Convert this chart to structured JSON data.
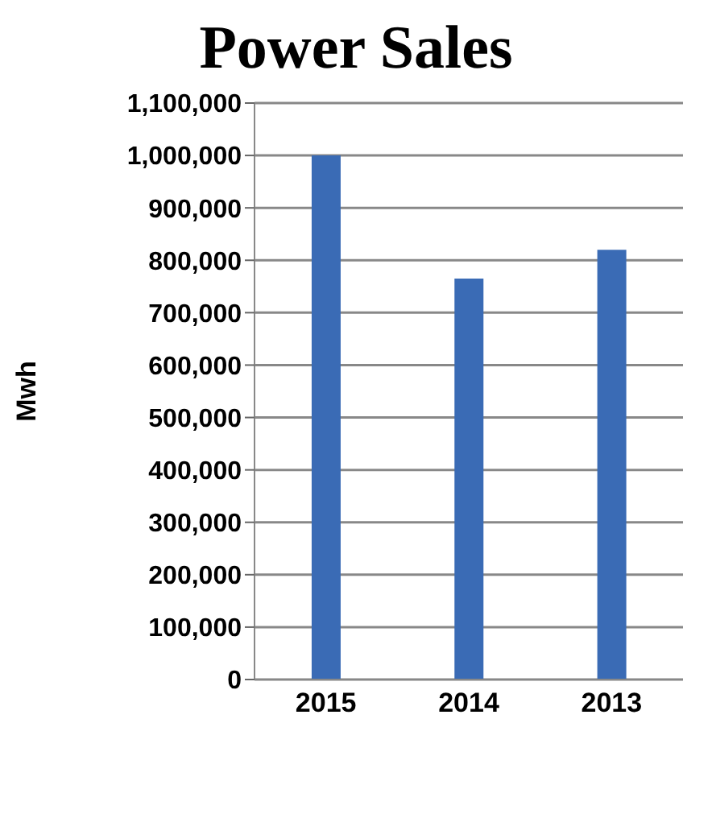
{
  "chart_data": {
    "type": "bar",
    "title": "Power Sales",
    "ylabel": "Mwh",
    "categories": [
      "2015",
      "2014",
      "2013"
    ],
    "values": [
      1000000,
      765000,
      820000
    ],
    "color": "#3a6bb5",
    "ylim": [
      0,
      1100000
    ],
    "yticks": [
      {
        "value": 0,
        "label": "0"
      },
      {
        "value": 100000,
        "label": "100,000"
      },
      {
        "value": 200000,
        "label": "200,000"
      },
      {
        "value": 300000,
        "label": "300,000"
      },
      {
        "value": 400000,
        "label": "400,000"
      },
      {
        "value": 500000,
        "label": "500,000"
      },
      {
        "value": 600000,
        "label": "600,000"
      },
      {
        "value": 700000,
        "label": "700,000"
      },
      {
        "value": 800000,
        "label": "800,000"
      },
      {
        "value": 900000,
        "label": "900,000"
      },
      {
        "value": 1000000,
        "label": "1,000,000"
      },
      {
        "value": 1100000,
        "label": "1,100,000"
      }
    ],
    "grid": "y"
  }
}
